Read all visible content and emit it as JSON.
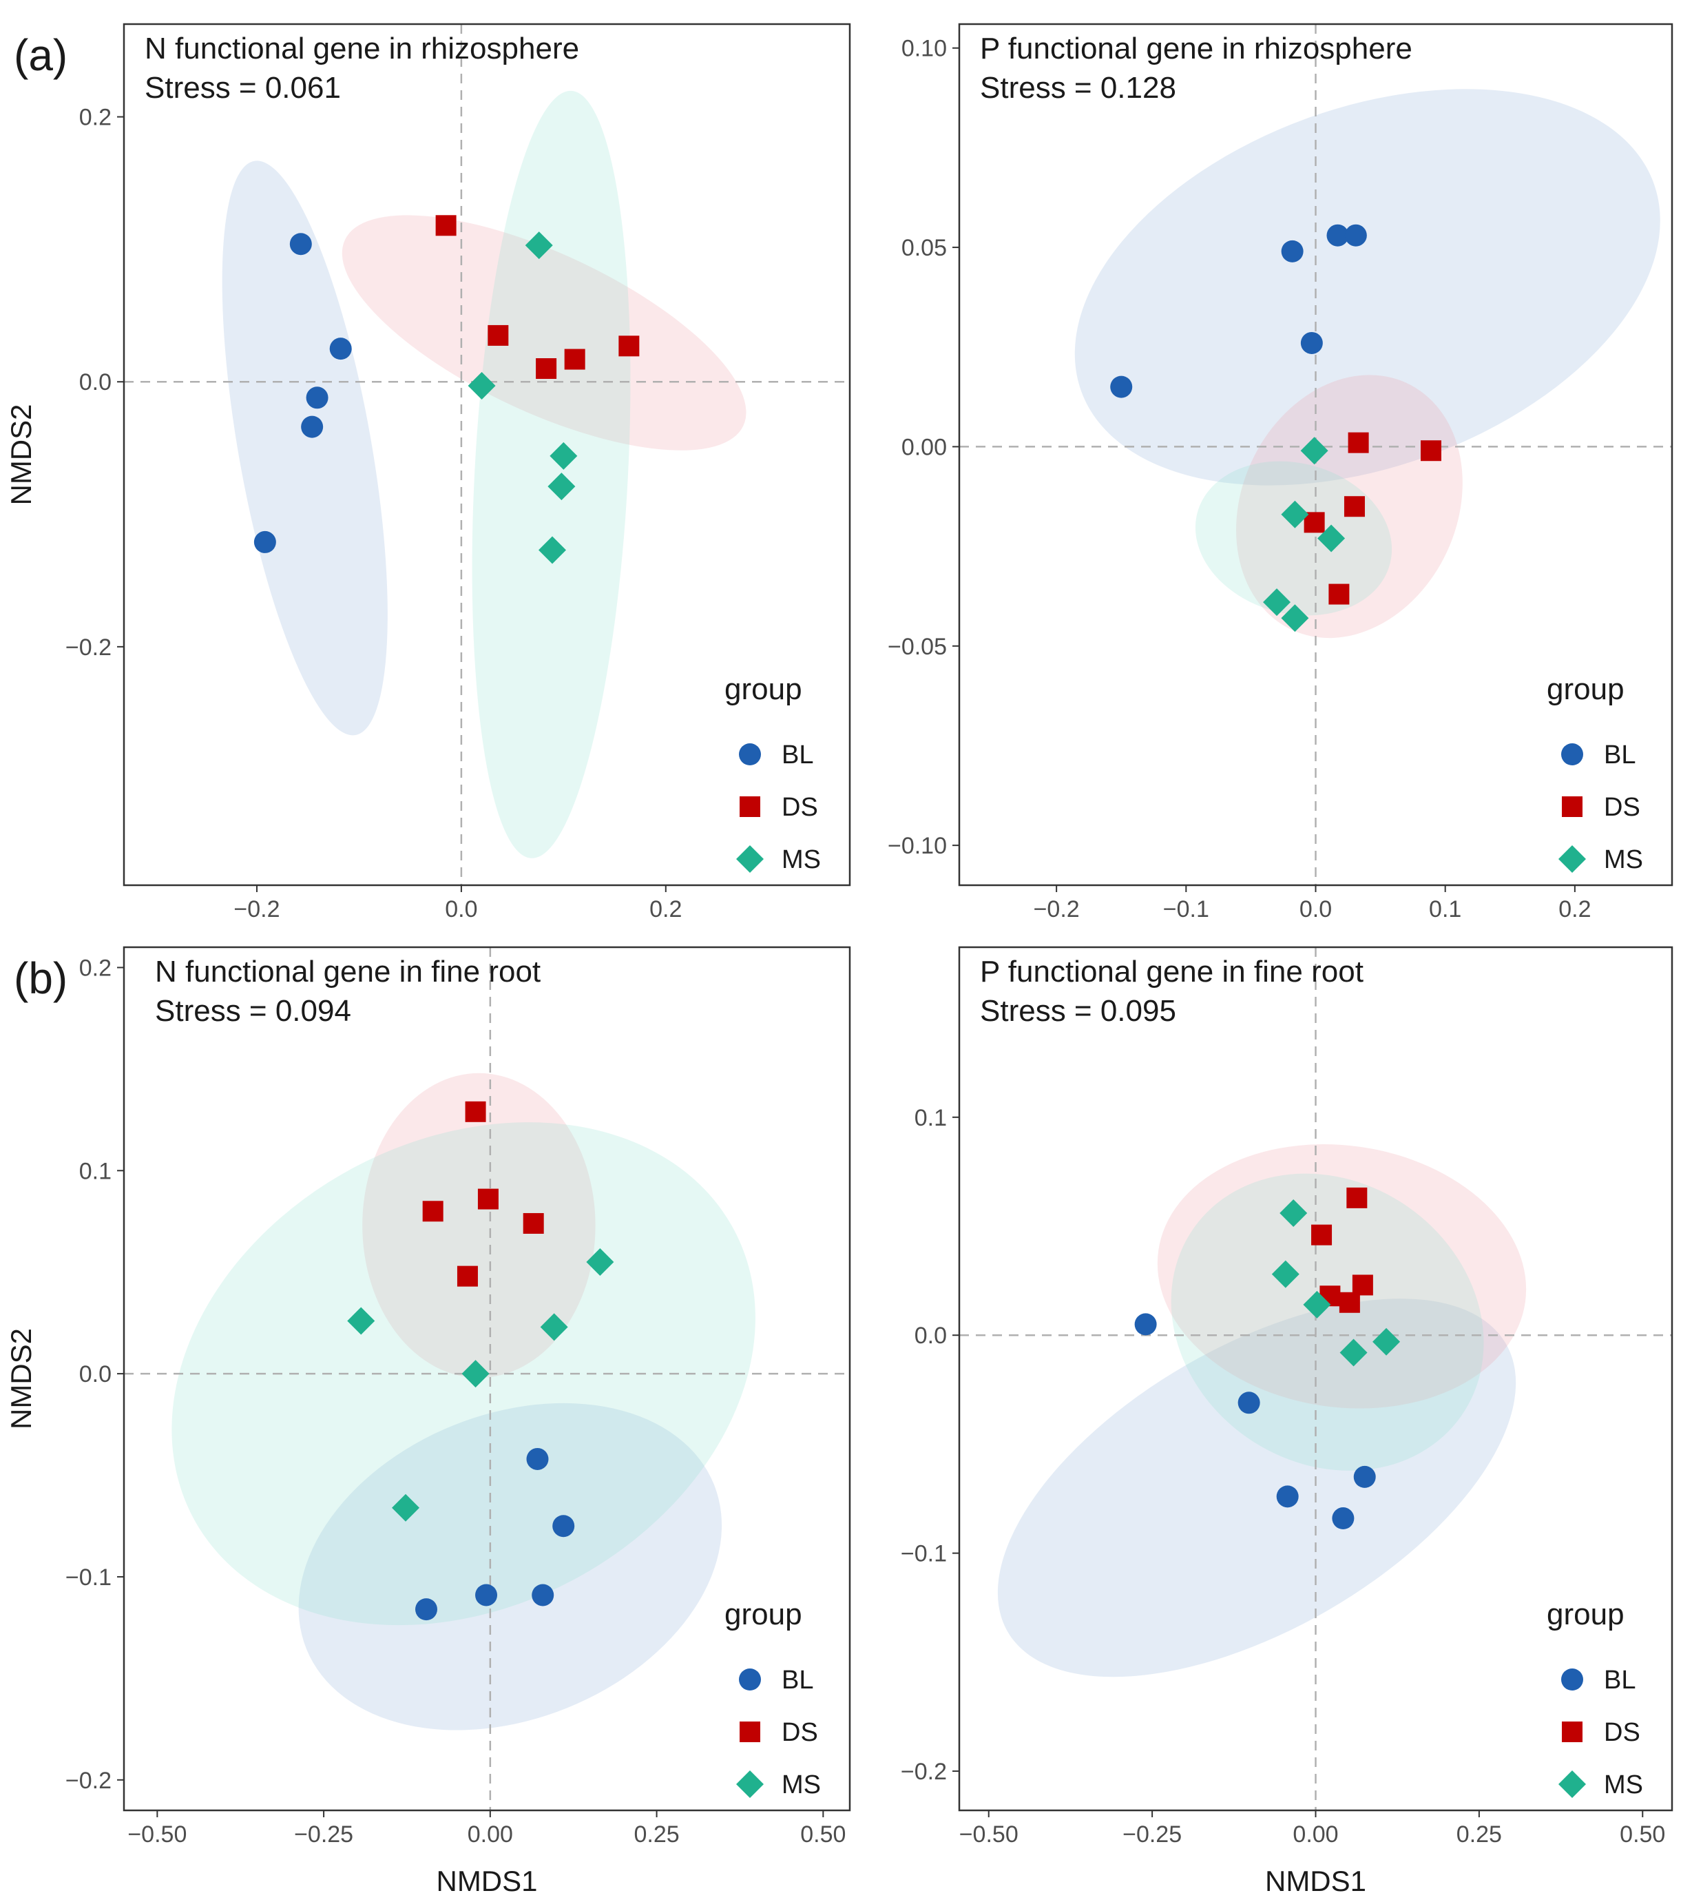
{
  "figure": {
    "panel_tags": [
      "(a)",
      "(b)"
    ]
  },
  "colors": {
    "BL": "#1f5fb0",
    "DS": "#c00000",
    "MS": "#20b18e",
    "BL_fill": "#8faed8",
    "DS_fill": "#f0a0a6",
    "MS_fill": "#93e3cf",
    "zero_line": "#b0b0b0",
    "frame": "#333333"
  },
  "legend": {
    "title": "group",
    "entries": [
      {
        "key": "BL",
        "label": "BL",
        "shape": "circle-icon"
      },
      {
        "key": "DS",
        "label": "DS",
        "shape": "square-icon"
      },
      {
        "key": "MS",
        "label": "MS",
        "shape": "diamond-icon"
      }
    ]
  },
  "chart_data": [
    {
      "type": "scatter",
      "id": "n-rhizosphere",
      "title": "N functional gene in rhizosphere",
      "subtitle": "Stress = 0.061",
      "xlabel": "",
      "ylabel": "NMDS2",
      "xlim": [
        -0.33,
        0.38
      ],
      "ylim": [
        -0.38,
        0.27
      ],
      "xticks": [
        -0.2,
        0.0,
        0.2
      ],
      "xtick_labels": [
        "−0.2",
        "0.0",
        "0.2"
      ],
      "yticks": [
        -0.2,
        0.0,
        0.2
      ],
      "ytick_labels": [
        "−0.2",
        "0.0",
        "0.2"
      ],
      "series": [
        {
          "name": "BL",
          "points": [
            [
              -0.157,
              0.104
            ],
            [
              -0.118,
              0.025
            ],
            [
              -0.141,
              -0.012
            ],
            [
              -0.146,
              -0.034
            ],
            [
              -0.192,
              -0.121
            ]
          ]
        },
        {
          "name": "DS",
          "points": [
            [
              -0.015,
              0.118
            ],
            [
              0.036,
              0.035
            ],
            [
              0.083,
              0.01
            ],
            [
              0.111,
              0.017
            ],
            [
              0.164,
              0.027
            ]
          ]
        },
        {
          "name": "MS",
          "points": [
            [
              0.076,
              0.103
            ],
            [
              0.02,
              -0.003
            ],
            [
              0.1,
              -0.056
            ],
            [
              0.098,
              -0.079
            ],
            [
              0.089,
              -0.127
            ]
          ]
        }
      ],
      "ellipses": [
        {
          "name": "BL",
          "center": [
            -0.153,
            -0.05
          ],
          "axes": [
            0.065,
            0.22
          ],
          "rotation_deg": 10
        },
        {
          "name": "DS",
          "center": [
            0.081,
            0.037
          ],
          "axes": [
            0.215,
            0.06
          ],
          "rotation_deg": -25
        },
        {
          "name": "MS",
          "center": [
            0.088,
            -0.07
          ],
          "axes": [
            0.075,
            0.29
          ],
          "rotation_deg": -3
        }
      ]
    },
    {
      "type": "scatter",
      "id": "p-rhizosphere",
      "title": "P functional gene in rhizosphere",
      "subtitle": "Stress = 0.128",
      "xlabel": "",
      "ylabel": "",
      "xlim": [
        -0.275,
        0.275
      ],
      "ylim": [
        -0.11,
        0.106
      ],
      "xticks": [
        -0.2,
        -0.1,
        0.0,
        0.1,
        0.2
      ],
      "xtick_labels": [
        "−0.2",
        "−0.1",
        "0.0",
        "0.1",
        "0.2"
      ],
      "yticks": [
        -0.1,
        -0.05,
        0.0,
        0.05,
        0.1
      ],
      "ytick_labels": [
        "−0.10",
        "−0.05",
        "0.00",
        "0.05",
        "0.10"
      ],
      "series": [
        {
          "name": "BL",
          "points": [
            [
              -0.15,
              0.015
            ],
            [
              -0.018,
              0.049
            ],
            [
              0.017,
              0.053
            ],
            [
              0.031,
              0.053
            ],
            [
              -0.003,
              0.026
            ]
          ]
        },
        {
          "name": "DS",
          "points": [
            [
              0.033,
              0.001
            ],
            [
              0.089,
              -0.001
            ],
            [
              0.03,
              -0.015
            ],
            [
              -0.001,
              -0.019
            ],
            [
              0.018,
              -0.037
            ]
          ]
        },
        {
          "name": "MS",
          "points": [
            [
              -0.001,
              -0.001
            ],
            [
              -0.016,
              -0.017
            ],
            [
              0.012,
              -0.023
            ],
            [
              -0.03,
              -0.039
            ],
            [
              -0.016,
              -0.043
            ]
          ]
        }
      ],
      "ellipses": [
        {
          "name": "BL",
          "center": [
            0.04,
            0.04
          ],
          "axes": [
            0.235,
            0.045
          ],
          "rotation_deg": 20
        },
        {
          "name": "DS",
          "center": [
            0.026,
            -0.015
          ],
          "axes": [
            0.105,
            0.027
          ],
          "rotation_deg": 65
        },
        {
          "name": "MS",
          "center": [
            -0.017,
            -0.023
          ],
          "axes": [
            0.058,
            0.025
          ],
          "rotation_deg": 75
        }
      ]
    },
    {
      "type": "scatter",
      "id": "n-fine-root",
      "title": "N functional gene in fine root",
      "subtitle": "Stress = 0.094",
      "xlabel": "NMDS1",
      "ylabel": "NMDS2",
      "xlim": [
        -0.55,
        0.54
      ],
      "ylim": [
        -0.215,
        0.21
      ],
      "xticks": [
        -0.5,
        -0.25,
        0.0,
        0.25,
        0.5
      ],
      "xtick_labels": [
        "−0.50",
        "−0.25",
        "0.00",
        "0.25",
        "0.50"
      ],
      "yticks": [
        -0.2,
        -0.1,
        0.0,
        0.1,
        0.2
      ],
      "ytick_labels": [
        "−0.2",
        "−0.1",
        "0.0",
        "0.1",
        "0.2"
      ],
      "series": [
        {
          "name": "BL",
          "points": [
            [
              0.071,
              -0.042
            ],
            [
              0.11,
              -0.075
            ],
            [
              -0.096,
              -0.116
            ],
            [
              -0.006,
              -0.109
            ],
            [
              0.079,
              -0.109
            ]
          ]
        },
        {
          "name": "DS",
          "points": [
            [
              -0.022,
              0.129
            ],
            [
              -0.086,
              0.08
            ],
            [
              -0.003,
              0.086
            ],
            [
              0.065,
              0.074
            ],
            [
              -0.034,
              0.048
            ]
          ]
        },
        {
          "name": "MS",
          "points": [
            [
              0.165,
              0.055
            ],
            [
              -0.194,
              0.026
            ],
            [
              0.096,
              0.023
            ],
            [
              -0.022,
              0.0
            ],
            [
              -0.127,
              -0.066
            ]
          ]
        }
      ],
      "ellipses": [
        {
          "name": "BL",
          "center": [
            0.03,
            -0.095
          ],
          "axes": [
            0.33,
            0.075
          ],
          "rotation_deg": 22
        },
        {
          "name": "DS",
          "center": [
            -0.017,
            0.073
          ],
          "axes": [
            0.175,
            0.075
          ],
          "rotation_deg": 0
        },
        {
          "name": "MS",
          "center": [
            -0.04,
            0.0
          ],
          "axes": [
            0.46,
            0.115
          ],
          "rotation_deg": 28
        }
      ]
    },
    {
      "type": "scatter",
      "id": "p-fine-root",
      "title": "P functional gene in fine root",
      "subtitle": "Stress = 0.095",
      "xlabel": "NMDS1",
      "ylabel": "",
      "xlim": [
        -0.545,
        0.545
      ],
      "ylim": [
        -0.218,
        0.178
      ],
      "xticks": [
        -0.5,
        -0.25,
        0.0,
        0.25,
        0.5
      ],
      "xtick_labels": [
        "−0.50",
        "−0.25",
        "0.00",
        "0.25",
        "0.50"
      ],
      "yticks": [
        -0.2,
        -0.1,
        0.0,
        0.1
      ],
      "ytick_labels": [
        "−0.2",
        "−0.1",
        "0.0",
        "0.1"
      ],
      "series": [
        {
          "name": "BL",
          "points": [
            [
              -0.26,
              0.005
            ],
            [
              -0.102,
              -0.031
            ],
            [
              -0.043,
              -0.074
            ],
            [
              0.075,
              -0.065
            ],
            [
              0.042,
              -0.084
            ]
          ]
        },
        {
          "name": "DS",
          "points": [
            [
              0.063,
              0.063
            ],
            [
              0.009,
              0.046
            ],
            [
              0.022,
              0.018
            ],
            [
              0.072,
              0.023
            ],
            [
              0.052,
              0.015
            ]
          ]
        },
        {
          "name": "MS",
          "points": [
            [
              -0.034,
              0.056
            ],
            [
              -0.046,
              0.028
            ],
            [
              0.002,
              0.014
            ],
            [
              0.108,
              -0.003
            ],
            [
              0.058,
              -0.008
            ]
          ]
        }
      ],
      "ellipses": [
        {
          "name": "BL",
          "center": [
            -0.09,
            -0.07
          ],
          "axes": [
            0.44,
            0.065
          ],
          "rotation_deg": 30
        },
        {
          "name": "DS",
          "center": [
            0.04,
            0.027
          ],
          "axes": [
            0.2,
            0.085
          ],
          "rotation_deg": 82
        },
        {
          "name": "MS",
          "center": [
            0.018,
            0.006
          ],
          "axes": [
            0.215,
            0.075
          ],
          "rotation_deg": 55
        }
      ]
    }
  ]
}
